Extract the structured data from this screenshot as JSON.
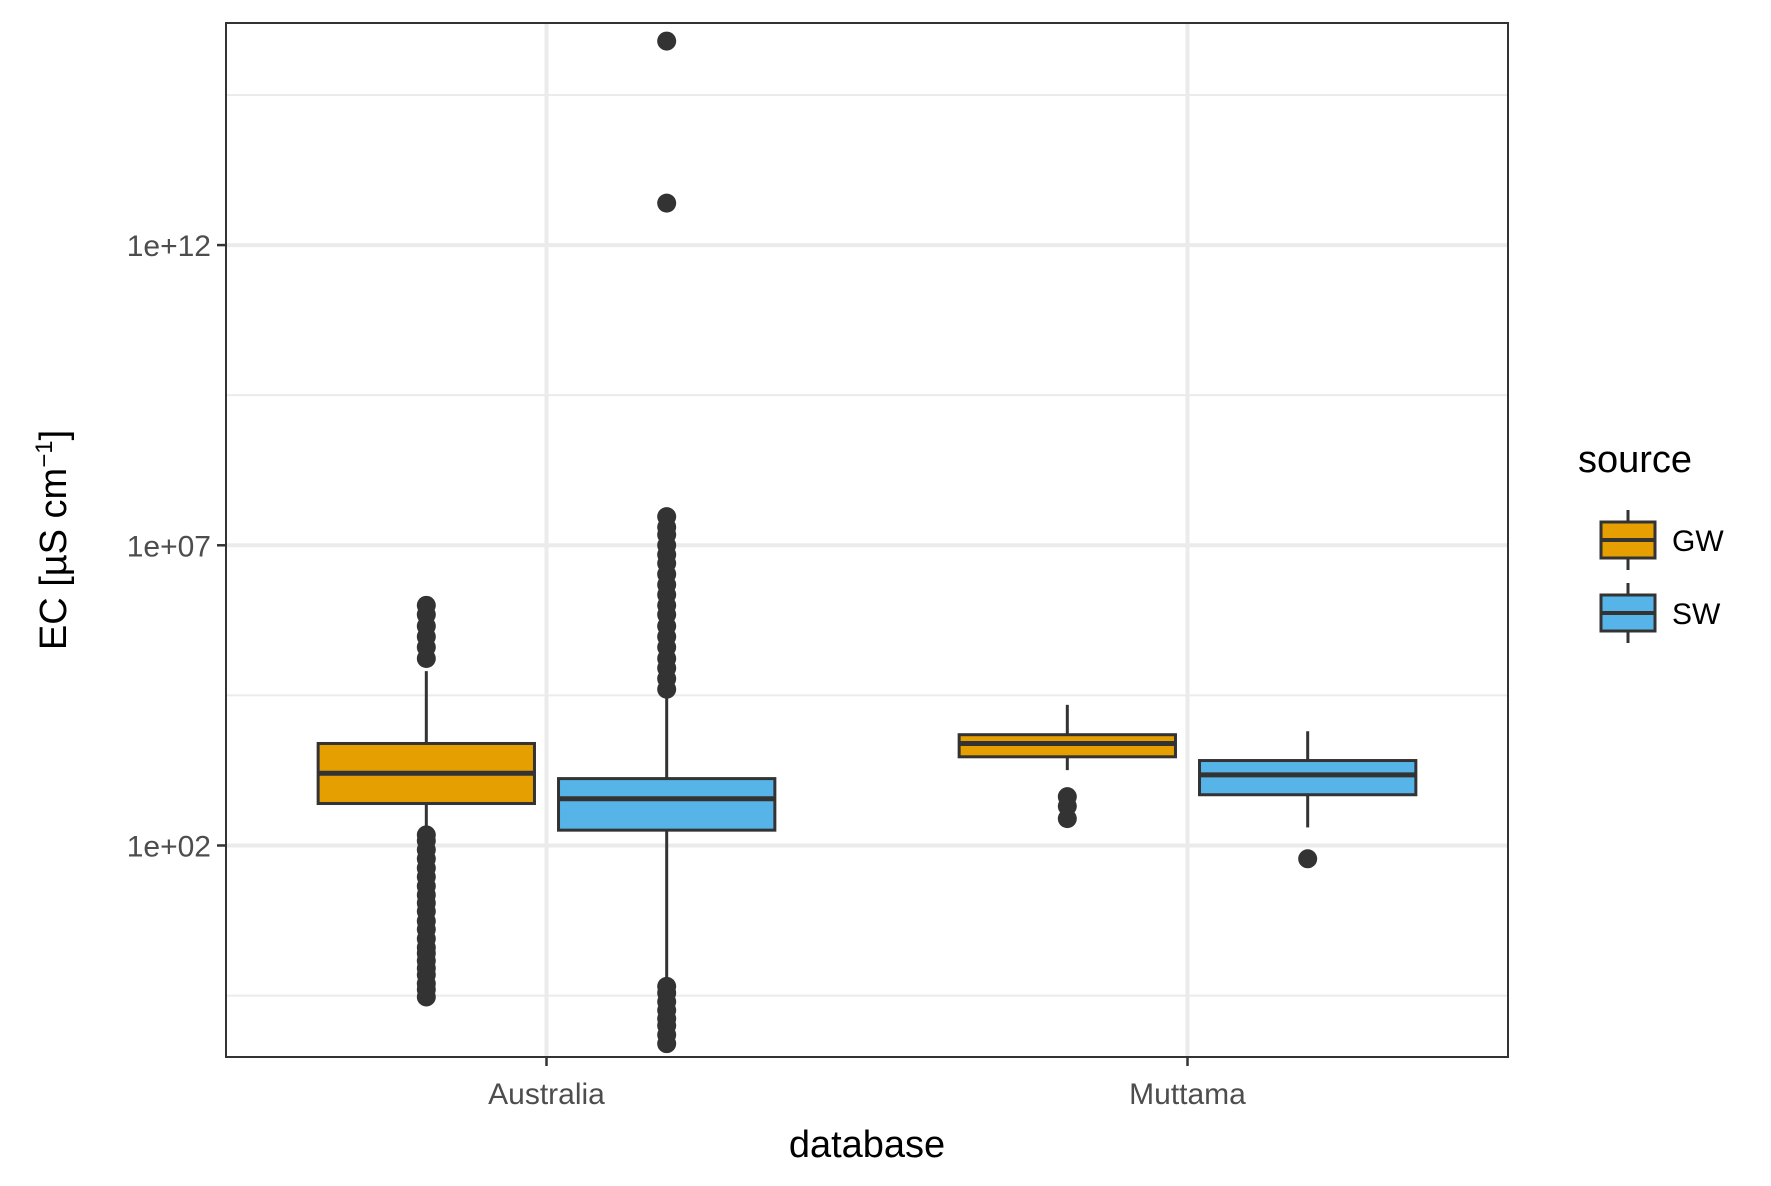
{
  "chart_data": {
    "type": "boxplot",
    "x_label": "database",
    "y_label": "EC [µS cm",
    "y_label_superscript": "−1",
    "y_label_close": "]",
    "y_scale": "log10",
    "y_range": [
      0.03,
      5000000000000000.0
    ],
    "y_tick_values": [
      100.0,
      10000000.0,
      1000000000000.0
    ],
    "y_tick_labels": [
      "1e+02",
      "1e+07",
      "1e+12"
    ],
    "categories": [
      "Australia",
      "Muttama"
    ],
    "legend": {
      "title": "source",
      "position": "right",
      "items": [
        {
          "label": "GW",
          "color": "#E69F00"
        },
        {
          "label": "SW",
          "color": "#56B4E9"
        }
      ]
    },
    "grid": true,
    "series": [
      {
        "name": "GW",
        "color": "#E69F00",
        "boxes": [
          {
            "category": "Australia",
            "whisker_low": 200,
            "q1": 500,
            "median": 1600,
            "q3": 5000,
            "whisker_high": 80000,
            "outliers": [
              0.3,
              0.4,
              0.5,
              0.7,
              0.9,
              1.2,
              1.6,
              2,
              2.8,
              4,
              5.5,
              8,
              11,
              15,
              21,
              30,
              42,
              60,
              85,
              120,
              150,
              130000.0,
              200000.0,
              300000.0,
              450000.0,
              700000.0,
              1000000.0
            ]
          },
          {
            "category": "Muttama",
            "whisker_low": 1800,
            "q1": 3000,
            "median": 5000,
            "q3": 7000,
            "whisker_high": 22000,
            "outliers": [
              280,
              450,
              650
            ]
          }
        ]
      },
      {
        "name": "SW",
        "color": "#56B4E9",
        "boxes": [
          {
            "category": "Australia",
            "whisker_low": 0.5,
            "q1": 180,
            "median": 600,
            "q3": 1300,
            "whisker_high": 30000.0,
            "outliers": [
              0.05,
              0.07,
              0.1,
              0.13,
              0.18,
              0.25,
              0.35,
              0.45,
              40000.0,
              60000.0,
              90000.0,
              130000.0,
              200000.0,
              300000.0,
              450000.0,
              700000.0,
              1000000.0,
              1500000.0,
              2200000.0,
              3300000.0,
              5000000.0,
              7000000.0,
              10000000.0,
              15000000.0,
              20000000.0,
              30000000.0,
              5000000000000.0,
              2500000000000000.0
            ]
          },
          {
            "category": "Muttama",
            "whisker_low": 200,
            "q1": 700,
            "median": 1500,
            "q3": 2600,
            "whisker_high": 8000,
            "outliers": [
              60
            ]
          }
        ]
      }
    ]
  }
}
